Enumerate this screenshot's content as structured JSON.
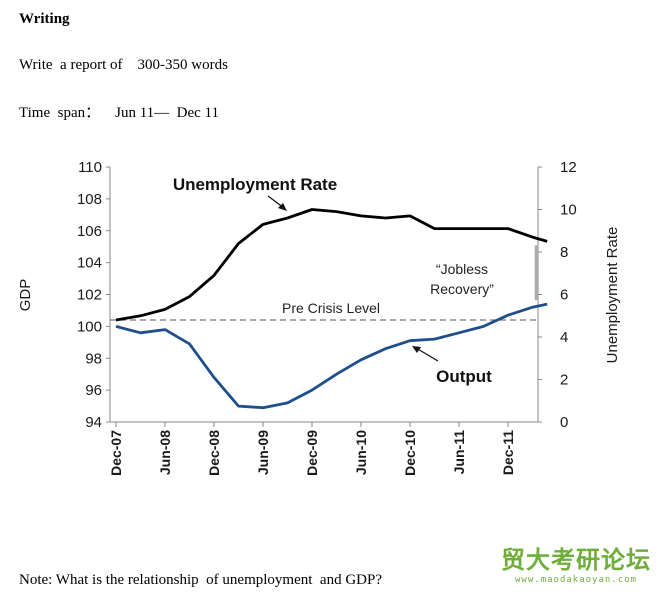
{
  "document": {
    "heading": "Writing",
    "instruction": "Write  a report of    300-350 words",
    "timespan": "Time  span：    Jun 11—  Dec 11",
    "note": "Note: What is the relationship  of unemployment  and GDP?"
  },
  "watermark": {
    "text": "贸大考研论坛",
    "url": "www.maodakaoyan.com"
  },
  "chart_data": {
    "type": "line",
    "categories": [
      "Dec-07",
      "Jun-08",
      "Dec-08",
      "Jun-09",
      "Dec-09",
      "Jun-10",
      "Dec-10",
      "Jun-11",
      "Dec-11"
    ],
    "xlabel": "",
    "ylabel": "GDP",
    "ylabel_right": "Unemployment Rate",
    "ylim": [
      94,
      110
    ],
    "ylim_right": [
      0,
      12
    ],
    "yticks": [
      94,
      96,
      98,
      100,
      102,
      104,
      106,
      108,
      110
    ],
    "yticks_right": [
      0,
      2,
      4,
      6,
      8,
      10,
      12
    ],
    "grid": false,
    "reference_line": {
      "label": "Pre Crisis Level",
      "value": 100.4
    },
    "annotation": "“Jobless Recovery”",
    "series": [
      {
        "name": "Unemployment Rate",
        "axis": "right",
        "color": "#000000",
        "x": [
          0,
          0.5,
          1,
          1.5,
          2,
          2.5,
          3,
          3.5,
          4,
          4.5,
          5,
          5.5,
          6,
          6.5,
          7,
          7.5,
          8,
          8.5,
          8.8
        ],
        "values": [
          4.8,
          5.0,
          5.3,
          5.9,
          6.9,
          8.4,
          9.3,
          9.6,
          10.0,
          9.9,
          9.7,
          9.6,
          9.7,
          9.1,
          9.1,
          9.1,
          9.1,
          8.7,
          8.5
        ]
      },
      {
        "name": "Output",
        "axis": "left",
        "color": "#1f4e8c",
        "x": [
          0,
          0.5,
          1,
          1.5,
          2,
          2.5,
          3,
          3.5,
          4,
          4.5,
          5,
          5.5,
          6,
          6.5,
          7,
          7.5,
          8,
          8.5,
          8.8
        ],
        "values": [
          100.0,
          99.6,
          99.8,
          98.9,
          96.8,
          95.0,
          94.9,
          95.2,
          96.0,
          97.0,
          97.9,
          98.6,
          99.1,
          99.2,
          99.6,
          100.0,
          100.7,
          101.2,
          101.4
        ]
      }
    ]
  }
}
